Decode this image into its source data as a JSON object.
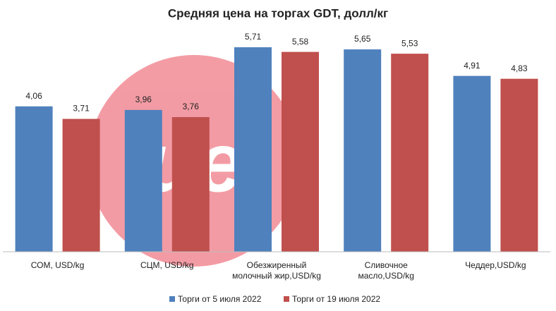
{
  "chart_data": {
    "type": "bar",
    "title": "Средняя цена на торгах GDT, долл/кг",
    "categories": [
      "СОМ, USD/kg",
      "СЦМ, USD/kg",
      "Обезжиренный молочный жир,USD/kg",
      "Сливочное масло,USD/kg",
      "Чеддер,USD/kg"
    ],
    "series": [
      {
        "name": "Торги от 5 июля 2022",
        "color": "#4f81bd",
        "values": [
          4.06,
          3.96,
          5.71,
          5.65,
          4.91
        ],
        "value_labels": [
          "4,06",
          "3,96",
          "5,71",
          "5,65",
          "4,91"
        ]
      },
      {
        "name": "Торги от 19 июля 2022",
        "color": "#c0504d",
        "values": [
          3.71,
          3.76,
          5.58,
          5.53,
          4.83
        ],
        "value_labels": [
          "3,71",
          "3,76",
          "5,58",
          "5,53",
          "4,83"
        ]
      }
    ],
    "legend": "bottom"
  }
}
